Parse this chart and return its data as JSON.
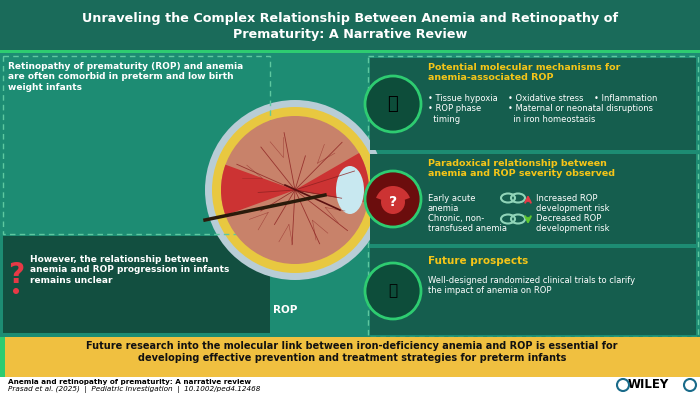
{
  "title_line1": "Unraveling the Complex Relationship Between Anemia and Retinopathy of",
  "title_line2": "Prematurity: A Narrative Review",
  "title_bg": "#1a6b5a",
  "title_stripe": "#2ecc71",
  "title_color": "#ffffff",
  "main_bg": "#1d8c73",
  "left_text1": "Retinopathy of prematurity (ROP) and anemia\nare often comorbid in preterm and low birth\nweight infants",
  "left_text2": "However, the relationship between\nanemia and ROP progression in infants\nremains unclear",
  "s1_title": "Potential molecular mechanisms for\nanemia-associated ROP",
  "s1_col1": "• Tissue hypoxia\n• ROP phase\n  timing",
  "s1_col2": "• Oxidative stress    • Inflammation\n• Maternal or neonatal disruptions\n  in iron homeostasis",
  "s2_title": "Paradoxical relationship between\nanemia and ROP severity observed",
  "s2_left1": "Early acute\nanemia",
  "s2_left2": "Chronic, non-\ntransfused anemia",
  "s2_right1": "Increased ROP\ndevelopment risk",
  "s2_right2": "Decreased ROP\ndevelopment risk",
  "s3_title": "Future prospects",
  "s3_text": "Well-designed randomized clinical trials to clarify\nthe impact of anemia on ROP",
  "bottom_bg": "#f0c040",
  "bottom_text": "Future research into the molecular link between iron-deficiency anemia and ROP is essential for\ndeveloping effective prevention and treatment strategies for preterm infants",
  "footer_text1": "Anemia and retinopathy of prematurity: A narrative review",
  "footer_text2": "Prasad et al. (2025)  |  Pediatric Investigation  |  10.1002/ped4.12468",
  "section_title_color": "#f5c518",
  "section_bg": "#155e4e",
  "dashed_color": "#5ec8a0",
  "question_color": "#e63946",
  "lower_left_bg": "#124f40",
  "rop_label": "ROP",
  "arrow_up_color": "#e63946",
  "arrow_down_color": "#5ec830"
}
